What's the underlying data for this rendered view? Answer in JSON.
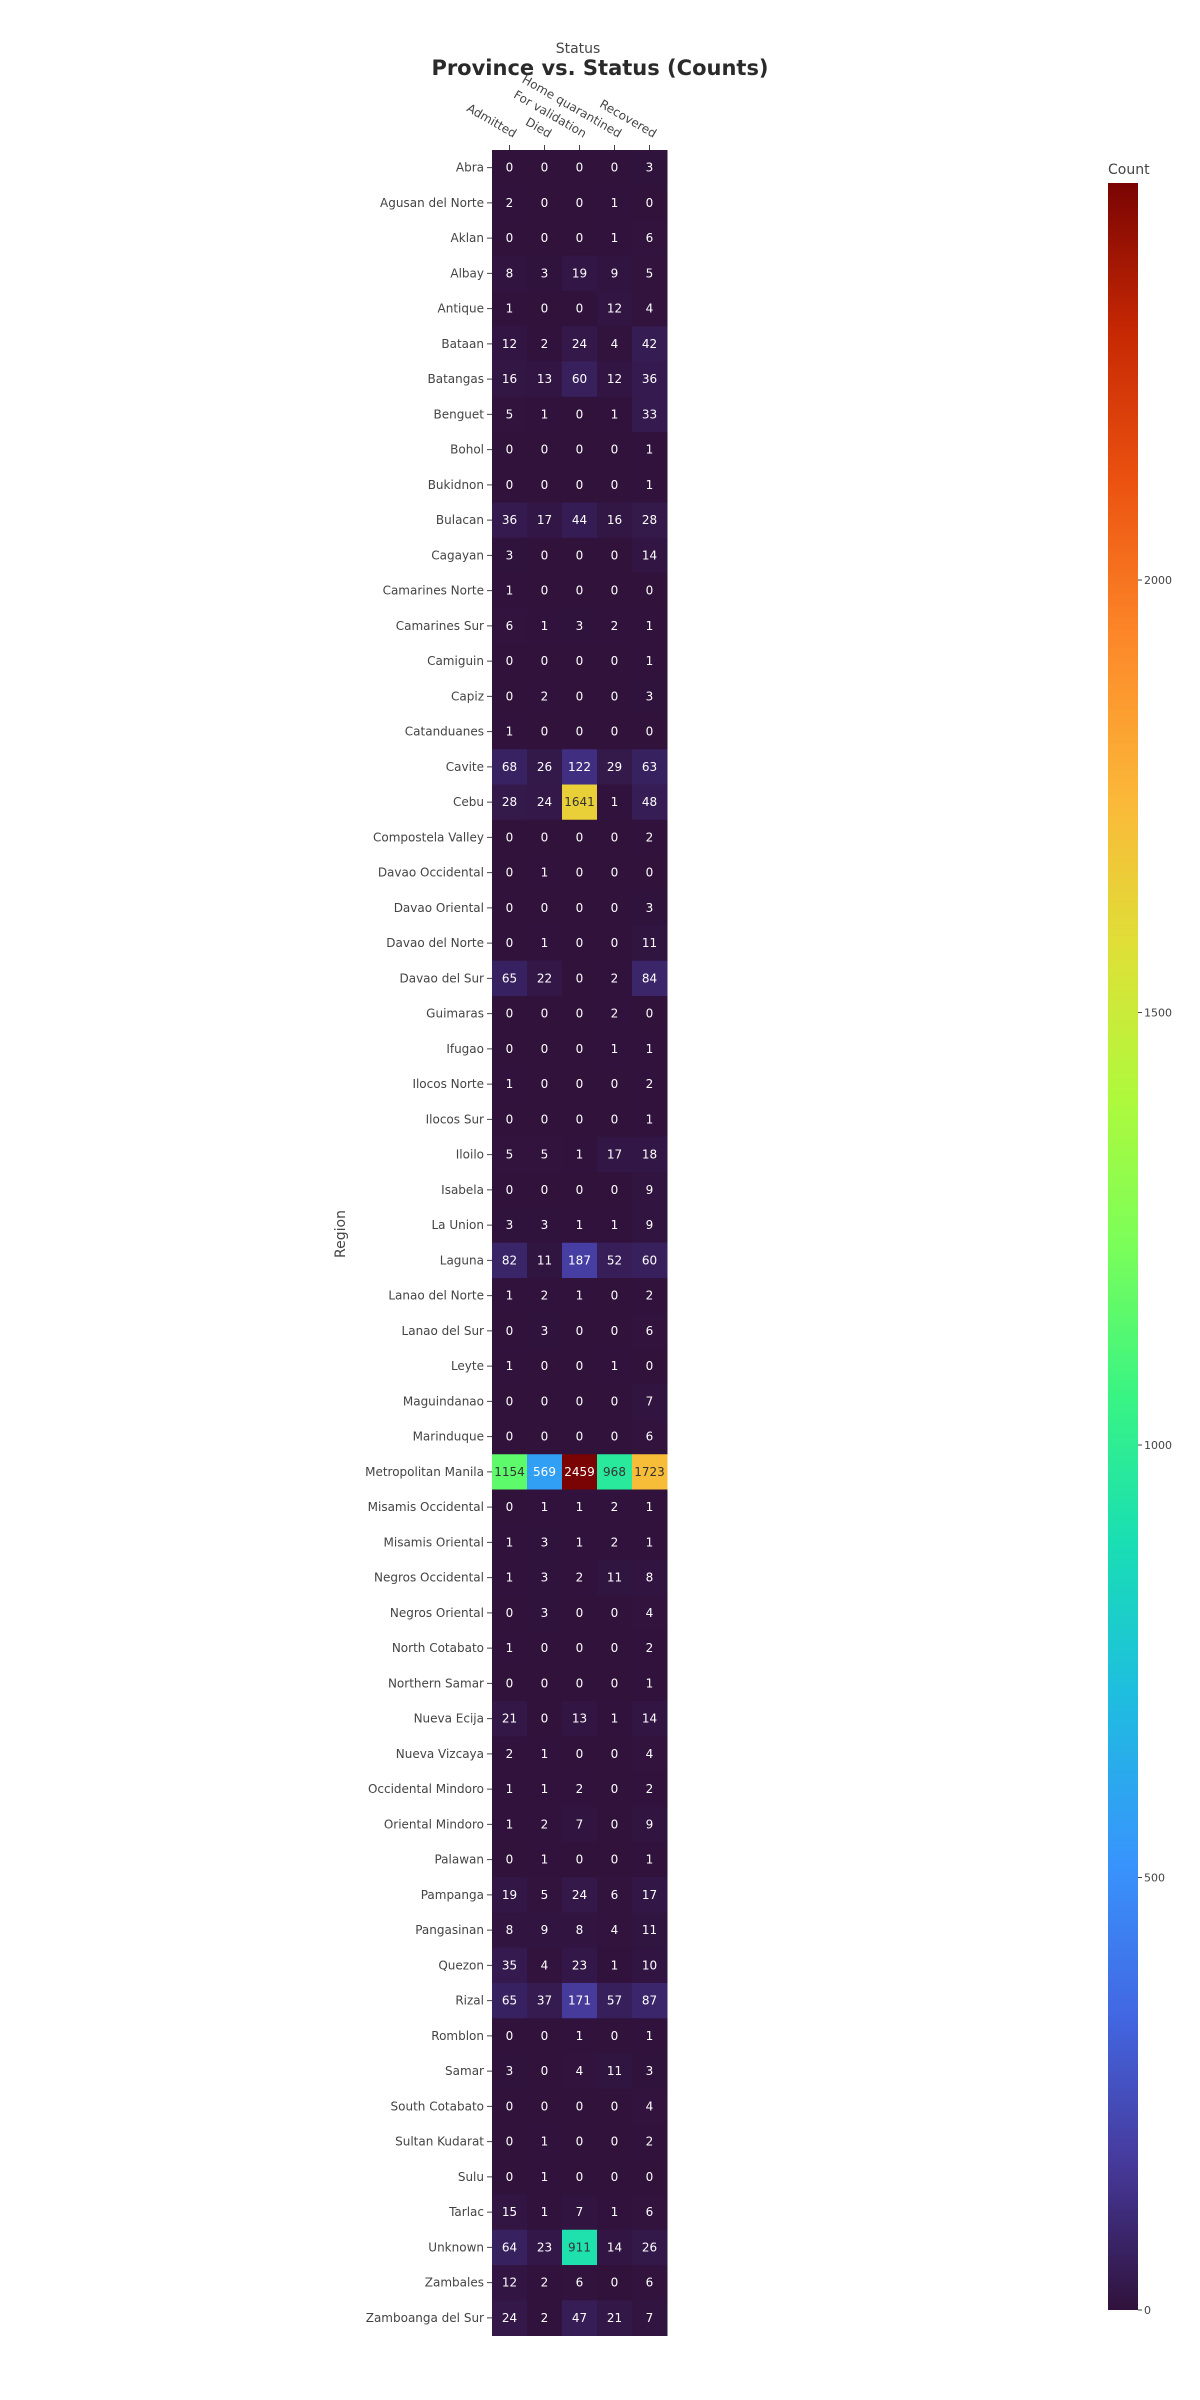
{
  "chart_data": {
    "type": "heatmap",
    "title": "Province vs. Status (Counts)",
    "xlabel": "Status",
    "ylabel": "Region",
    "colorbar_title": "Count",
    "colorscale": "turbo",
    "zrange": [
      0,
      2459
    ],
    "colorbar_ticks": [
      0,
      500,
      1000,
      1500,
      2000
    ],
    "x": [
      "Admitted",
      "Died",
      "For validation",
      "Home quarantined",
      "Recovered"
    ],
    "y": [
      "Abra",
      "Agusan del Norte",
      "Aklan",
      "Albay",
      "Antique",
      "Bataan",
      "Batangas",
      "Benguet",
      "Bohol",
      "Bukidnon",
      "Bulacan",
      "Cagayan",
      "Camarines Norte",
      "Camarines Sur",
      "Camiguin",
      "Capiz",
      "Catanduanes",
      "Cavite",
      "Cebu",
      "Compostela Valley",
      "Davao Occidental",
      "Davao Oriental",
      "Davao del Norte",
      "Davao del Sur",
      "Guimaras",
      "Ifugao",
      "Ilocos Norte",
      "Ilocos Sur",
      "Iloilo",
      "Isabela",
      "La Union",
      "Laguna",
      "Lanao del Norte",
      "Lanao del Sur",
      "Leyte",
      "Maguindanao",
      "Marinduque",
      "Metropolitan Manila",
      "Misamis Occidental",
      "Misamis Oriental",
      "Negros Occidental",
      "Negros Oriental",
      "North Cotabato",
      "Northern Samar",
      "Nueva Ecija",
      "Nueva Vizcaya",
      "Occidental Mindoro",
      "Oriental Mindoro",
      "Palawan",
      "Pampanga",
      "Pangasinan",
      "Quezon",
      "Rizal",
      "Romblon",
      "Samar",
      "South Cotabato",
      "Sultan Kudarat",
      "Sulu",
      "Tarlac",
      "Unknown",
      "Zambales",
      "Zamboanga del Sur"
    ],
    "z": [
      [
        0,
        0,
        0,
        0,
        3
      ],
      [
        2,
        0,
        0,
        1,
        0
      ],
      [
        0,
        0,
        0,
        1,
        6
      ],
      [
        8,
        3,
        19,
        9,
        5
      ],
      [
        1,
        0,
        0,
        12,
        4
      ],
      [
        12,
        2,
        24,
        4,
        42
      ],
      [
        16,
        13,
        60,
        12,
        36
      ],
      [
        5,
        1,
        0,
        1,
        33
      ],
      [
        0,
        0,
        0,
        0,
        1
      ],
      [
        0,
        0,
        0,
        0,
        1
      ],
      [
        36,
        17,
        44,
        16,
        28
      ],
      [
        3,
        0,
        0,
        0,
        14
      ],
      [
        1,
        0,
        0,
        0,
        0
      ],
      [
        6,
        1,
        3,
        2,
        1
      ],
      [
        0,
        0,
        0,
        0,
        1
      ],
      [
        0,
        2,
        0,
        0,
        3
      ],
      [
        1,
        0,
        0,
        0,
        0
      ],
      [
        68,
        26,
        122,
        29,
        63
      ],
      [
        28,
        24,
        1641,
        1,
        48
      ],
      [
        0,
        0,
        0,
        0,
        2
      ],
      [
        0,
        1,
        0,
        0,
        0
      ],
      [
        0,
        0,
        0,
        0,
        3
      ],
      [
        0,
        1,
        0,
        0,
        11
      ],
      [
        65,
        22,
        0,
        2,
        84
      ],
      [
        0,
        0,
        0,
        2,
        0
      ],
      [
        0,
        0,
        0,
        1,
        1
      ],
      [
        1,
        0,
        0,
        0,
        2
      ],
      [
        0,
        0,
        0,
        0,
        1
      ],
      [
        5,
        5,
        1,
        17,
        18
      ],
      [
        0,
        0,
        0,
        0,
        9
      ],
      [
        3,
        3,
        1,
        1,
        9
      ],
      [
        82,
        11,
        187,
        52,
        60
      ],
      [
        1,
        2,
        1,
        0,
        2
      ],
      [
        0,
        3,
        0,
        0,
        6
      ],
      [
        1,
        0,
        0,
        1,
        0
      ],
      [
        0,
        0,
        0,
        0,
        7
      ],
      [
        0,
        0,
        0,
        0,
        6
      ],
      [
        1154,
        569,
        2459,
        968,
        1723
      ],
      [
        0,
        1,
        1,
        2,
        1
      ],
      [
        1,
        3,
        1,
        2,
        1
      ],
      [
        1,
        3,
        2,
        11,
        8
      ],
      [
        0,
        3,
        0,
        0,
        4
      ],
      [
        1,
        0,
        0,
        0,
        2
      ],
      [
        0,
        0,
        0,
        0,
        1
      ],
      [
        21,
        0,
        13,
        1,
        14
      ],
      [
        2,
        1,
        0,
        0,
        4
      ],
      [
        1,
        1,
        2,
        0,
        2
      ],
      [
        1,
        2,
        7,
        0,
        9
      ],
      [
        0,
        1,
        0,
        0,
        1
      ],
      [
        19,
        5,
        24,
        6,
        17
      ],
      [
        8,
        9,
        8,
        4,
        11
      ],
      [
        35,
        4,
        23,
        1,
        10
      ],
      [
        65,
        37,
        171,
        57,
        87
      ],
      [
        0,
        0,
        1,
        0,
        1
      ],
      [
        3,
        0,
        4,
        11,
        3
      ],
      [
        0,
        0,
        0,
        0,
        4
      ],
      [
        0,
        1,
        0,
        0,
        2
      ],
      [
        0,
        1,
        0,
        0,
        0
      ],
      [
        15,
        1,
        7,
        1,
        6
      ],
      [
        64,
        23,
        911,
        14,
        26
      ],
      [
        12,
        2,
        6,
        0,
        6
      ],
      [
        24,
        2,
        47,
        21,
        7
      ]
    ]
  }
}
